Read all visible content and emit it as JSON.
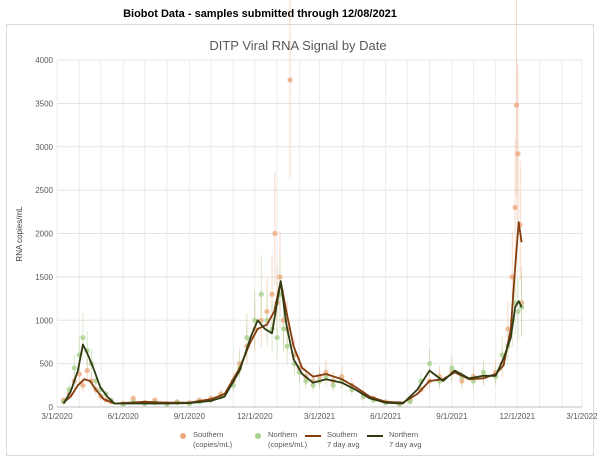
{
  "header": {
    "text": "Biobot Data - samples submitted through 12/08/2021"
  },
  "chart_data": {
    "type": "scatter",
    "title": "DITP Viral RNA Signal by Date",
    "xlabel": "",
    "ylabel": "RNA copies/mL",
    "xlim": [
      "2020-03-01",
      "2022-03-01"
    ],
    "ylim": [
      0,
      4000
    ],
    "y_ticks": [
      0,
      500,
      1000,
      1500,
      2000,
      2500,
      3000,
      3500,
      4000
    ],
    "x_ticks": [
      {
        "label": "3/1/2020",
        "date": "2020-03-01"
      },
      {
        "label": "6/1/2020",
        "date": "2020-06-01"
      },
      {
        "label": "9/1/2020",
        "date": "2020-09-01"
      },
      {
        "label": "12/1/2020",
        "date": "2020-12-01"
      },
      {
        "label": "3/1/2021",
        "date": "2021-03-01"
      },
      {
        "label": "6/1/2021",
        "date": "2021-06-01"
      },
      {
        "label": "9/1/2021",
        "date": "2021-09-01"
      },
      {
        "label": "12/1/2021",
        "date": "2021-12-01"
      },
      {
        "label": "3/1/2022",
        "date": "2022-03-01"
      }
    ],
    "grid": true,
    "legend_position": "bottom",
    "series": [
      {
        "name": "Southern (copies/mL)",
        "legend_lines": [
          "Southern",
          "(copies/mL)"
        ],
        "kind": "points",
        "color": "#f0a77d",
        "points": [
          [
            "2020-03-10",
            80
          ],
          [
            "2020-03-18",
            150
          ],
          [
            "2020-03-25",
            300
          ],
          [
            "2020-04-01",
            380
          ],
          [
            "2020-04-06",
            250
          ],
          [
            "2020-04-12",
            420
          ],
          [
            "2020-04-18",
            300
          ],
          [
            "2020-04-24",
            200
          ],
          [
            "2020-05-01",
            120
          ],
          [
            "2020-05-08",
            80
          ],
          [
            "2020-05-15",
            60
          ],
          [
            "2020-06-01",
            40
          ],
          [
            "2020-06-15",
            100
          ],
          [
            "2020-07-01",
            50
          ],
          [
            "2020-07-15",
            80
          ],
          [
            "2020-08-01",
            40
          ],
          [
            "2020-08-15",
            60
          ],
          [
            "2020-09-01",
            50
          ],
          [
            "2020-09-15",
            80
          ],
          [
            "2020-10-01",
            100
          ],
          [
            "2020-10-15",
            150
          ],
          [
            "2020-11-01",
            300
          ],
          [
            "2020-11-10",
            500
          ],
          [
            "2020-11-20",
            700
          ],
          [
            "2020-12-01",
            900
          ],
          [
            "2020-12-10",
            1000
          ],
          [
            "2020-12-18",
            1100
          ],
          [
            "2020-12-25",
            1300
          ],
          [
            "2020-12-29",
            2000
          ],
          [
            "2021-01-01",
            1200
          ],
          [
            "2021-01-05",
            1500
          ],
          [
            "2021-01-10",
            1000
          ],
          [
            "2021-01-15",
            900
          ],
          [
            "2021-01-19",
            3770
          ],
          [
            "2021-01-25",
            600
          ],
          [
            "2021-02-01",
            450
          ],
          [
            "2021-02-10",
            350
          ],
          [
            "2021-02-20",
            300
          ],
          [
            "2021-03-01",
            350
          ],
          [
            "2021-03-10",
            400
          ],
          [
            "2021-03-20",
            300
          ],
          [
            "2021-04-01",
            350
          ],
          [
            "2021-04-15",
            250
          ],
          [
            "2021-05-01",
            150
          ],
          [
            "2021-05-15",
            100
          ],
          [
            "2021-06-01",
            60
          ],
          [
            "2021-06-20",
            40
          ],
          [
            "2021-07-05",
            80
          ],
          [
            "2021-07-20",
            200
          ],
          [
            "2021-08-01",
            300
          ],
          [
            "2021-08-15",
            350
          ],
          [
            "2021-09-01",
            400
          ],
          [
            "2021-09-15",
            300
          ],
          [
            "2021-10-01",
            350
          ],
          [
            "2021-10-15",
            350
          ],
          [
            "2021-11-01",
            400
          ],
          [
            "2021-11-10",
            500
          ],
          [
            "2021-11-18",
            900
          ],
          [
            "2021-11-24",
            1500
          ],
          [
            "2021-11-28",
            2300
          ],
          [
            "2021-11-30",
            3480
          ],
          [
            "2021-12-02",
            2920
          ],
          [
            "2021-12-05",
            2100
          ],
          [
            "2021-12-07",
            1200
          ]
        ]
      },
      {
        "name": "Northern (copies/mL)",
        "legend_lines": [
          "Northern",
          "(copies/mL)"
        ],
        "kind": "points",
        "color": "#a8d08d",
        "points": [
          [
            "2020-03-10",
            60
          ],
          [
            "2020-03-18",
            200
          ],
          [
            "2020-03-25",
            450
          ],
          [
            "2020-04-01",
            600
          ],
          [
            "2020-04-06",
            800
          ],
          [
            "2020-04-12",
            650
          ],
          [
            "2020-04-18",
            500
          ],
          [
            "2020-04-24",
            300
          ],
          [
            "2020-05-01",
            200
          ],
          [
            "2020-05-08",
            150
          ],
          [
            "2020-05-15",
            80
          ],
          [
            "2020-06-01",
            30
          ],
          [
            "2020-06-15",
            60
          ],
          [
            "2020-07-01",
            40
          ],
          [
            "2020-07-15",
            50
          ],
          [
            "2020-08-01",
            30
          ],
          [
            "2020-08-15",
            50
          ],
          [
            "2020-09-01",
            40
          ],
          [
            "2020-09-15",
            60
          ],
          [
            "2020-10-01",
            80
          ],
          [
            "2020-10-15",
            120
          ],
          [
            "2020-11-01",
            250
          ],
          [
            "2020-11-10",
            450
          ],
          [
            "2020-11-20",
            800
          ],
          [
            "2020-12-01",
            1000
          ],
          [
            "2020-12-10",
            1300
          ],
          [
            "2020-12-18",
            1000
          ],
          [
            "2020-12-25",
            900
          ],
          [
            "2021-01-01",
            800
          ],
          [
            "2021-01-05",
            1300
          ],
          [
            "2021-01-10",
            900
          ],
          [
            "2021-01-15",
            700
          ],
          [
            "2021-01-25",
            500
          ],
          [
            "2021-02-01",
            400
          ],
          [
            "2021-02-10",
            300
          ],
          [
            "2021-02-20",
            250
          ],
          [
            "2021-03-01",
            300
          ],
          [
            "2021-03-10",
            350
          ],
          [
            "2021-03-20",
            250
          ],
          [
            "2021-04-01",
            300
          ],
          [
            "2021-04-15",
            200
          ],
          [
            "2021-05-01",
            120
          ],
          [
            "2021-05-15",
            80
          ],
          [
            "2021-06-01",
            50
          ],
          [
            "2021-06-20",
            30
          ],
          [
            "2021-07-05",
            60
          ],
          [
            "2021-07-20",
            300
          ],
          [
            "2021-08-01",
            500
          ],
          [
            "2021-08-15",
            300
          ],
          [
            "2021-09-01",
            450
          ],
          [
            "2021-09-15",
            350
          ],
          [
            "2021-10-01",
            300
          ],
          [
            "2021-10-15",
            400
          ],
          [
            "2021-11-01",
            350
          ],
          [
            "2021-11-10",
            600
          ],
          [
            "2021-11-18",
            700
          ],
          [
            "2021-11-24",
            1000
          ],
          [
            "2021-11-28",
            1200
          ],
          [
            "2021-12-02",
            1100
          ],
          [
            "2021-12-07",
            1150
          ]
        ]
      },
      {
        "name": "Southern 7 day avg",
        "legend_lines": [
          "Southern",
          "7 day avg"
        ],
        "kind": "line",
        "color": "#843c0c",
        "points": [
          [
            "2020-03-10",
            50
          ],
          [
            "2020-03-20",
            120
          ],
          [
            "2020-03-30",
            250
          ],
          [
            "2020-04-08",
            320
          ],
          [
            "2020-04-16",
            300
          ],
          [
            "2020-04-24",
            200
          ],
          [
            "2020-05-05",
            90
          ],
          [
            "2020-05-20",
            40
          ],
          [
            "2020-06-10",
            50
          ],
          [
            "2020-07-01",
            60
          ],
          [
            "2020-08-01",
            50
          ],
          [
            "2020-09-01",
            50
          ],
          [
            "2020-10-01",
            90
          ],
          [
            "2020-10-20",
            150
          ],
          [
            "2020-11-10",
            450
          ],
          [
            "2020-11-25",
            750
          ],
          [
            "2020-12-05",
            900
          ],
          [
            "2020-12-18",
            950
          ],
          [
            "2020-12-28",
            1100
          ],
          [
            "2021-01-06",
            1450
          ],
          [
            "2021-01-14",
            1100
          ],
          [
            "2021-01-24",
            700
          ],
          [
            "2021-02-05",
            450
          ],
          [
            "2021-02-20",
            350
          ],
          [
            "2021-03-10",
            380
          ],
          [
            "2021-04-01",
            320
          ],
          [
            "2021-04-20",
            230
          ],
          [
            "2021-05-10",
            120
          ],
          [
            "2021-06-01",
            60
          ],
          [
            "2021-06-25",
            50
          ],
          [
            "2021-07-15",
            150
          ],
          [
            "2021-08-01",
            300
          ],
          [
            "2021-08-20",
            320
          ],
          [
            "2021-09-05",
            400
          ],
          [
            "2021-09-25",
            320
          ],
          [
            "2021-10-15",
            330
          ],
          [
            "2021-11-01",
            380
          ],
          [
            "2021-11-12",
            480
          ],
          [
            "2021-11-22",
            900
          ],
          [
            "2021-11-28",
            1600
          ],
          [
            "2021-12-03",
            2130
          ],
          [
            "2021-12-07",
            1900
          ]
        ]
      },
      {
        "name": "Northern 7 day avg",
        "legend_lines": [
          "Northern",
          "7 day avg"
        ],
        "kind": "line",
        "color": "#2f3b12",
        "points": [
          [
            "2020-03-10",
            40
          ],
          [
            "2020-03-20",
            180
          ],
          [
            "2020-03-30",
            420
          ],
          [
            "2020-04-06",
            720
          ],
          [
            "2020-04-12",
            620
          ],
          [
            "2020-04-20",
            460
          ],
          [
            "2020-04-30",
            230
          ],
          [
            "2020-05-10",
            120
          ],
          [
            "2020-05-20",
            40
          ],
          [
            "2020-06-10",
            40
          ],
          [
            "2020-07-01",
            40
          ],
          [
            "2020-08-01",
            40
          ],
          [
            "2020-09-01",
            45
          ],
          [
            "2020-10-01",
            70
          ],
          [
            "2020-10-20",
            120
          ],
          [
            "2020-11-10",
            420
          ],
          [
            "2020-11-25",
            800
          ],
          [
            "2020-12-05",
            1000
          ],
          [
            "2020-12-15",
            900
          ],
          [
            "2020-12-25",
            850
          ],
          [
            "2021-01-06",
            1450
          ],
          [
            "2021-01-14",
            950
          ],
          [
            "2021-01-24",
            550
          ],
          [
            "2021-02-05",
            380
          ],
          [
            "2021-02-20",
            280
          ],
          [
            "2021-03-10",
            320
          ],
          [
            "2021-04-01",
            280
          ],
          [
            "2021-04-20",
            200
          ],
          [
            "2021-05-10",
            100
          ],
          [
            "2021-06-01",
            50
          ],
          [
            "2021-06-25",
            40
          ],
          [
            "2021-07-15",
            200
          ],
          [
            "2021-08-01",
            420
          ],
          [
            "2021-08-20",
            300
          ],
          [
            "2021-09-05",
            420
          ],
          [
            "2021-09-25",
            330
          ],
          [
            "2021-10-15",
            360
          ],
          [
            "2021-11-01",
            360
          ],
          [
            "2021-11-12",
            560
          ],
          [
            "2021-11-22",
            800
          ],
          [
            "2021-11-28",
            1150
          ],
          [
            "2021-12-03",
            1220
          ],
          [
            "2021-12-07",
            1150
          ]
        ]
      }
    ]
  }
}
